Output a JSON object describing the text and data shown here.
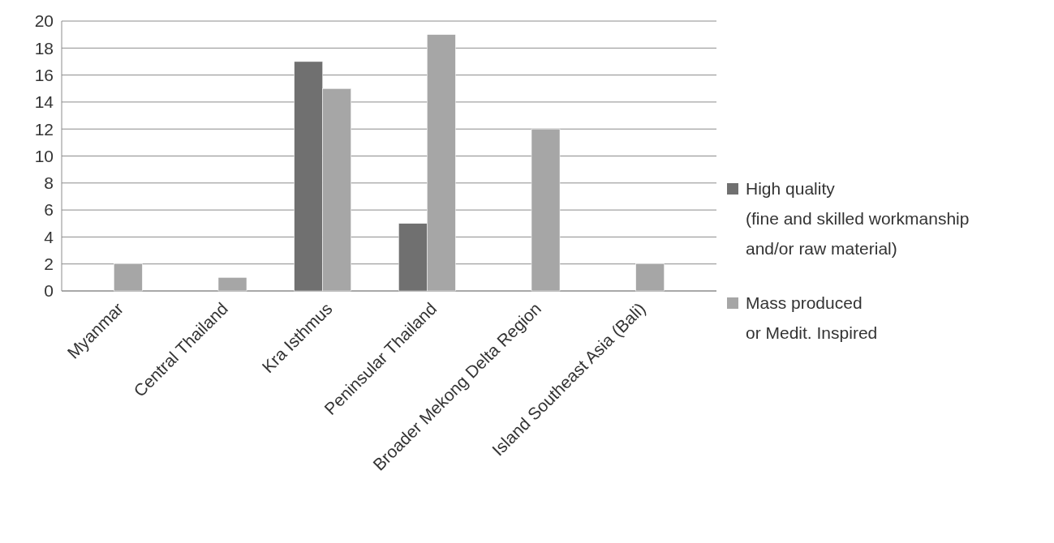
{
  "chart_data": {
    "type": "bar",
    "categories": [
      "Myanmar",
      "Central Thailand",
      "Kra Isthmus",
      "Peninsular Thailand",
      "Broader Mekong Delta Region",
      "Island Southeast Asia (Bali)"
    ],
    "series": [
      {
        "name": "High quality\n(fine and skilled workmanship\nand/or raw material)",
        "color": "#707070",
        "values": [
          0,
          0,
          17,
          5,
          0,
          0
        ]
      },
      {
        "name": "Mass produced\nor Medit. Inspired",
        "color": "#a6a6a6",
        "values": [
          2,
          1,
          15,
          19,
          12,
          2
        ]
      }
    ],
    "ylim": [
      0,
      20
    ],
    "yticks": [
      0,
      2,
      4,
      6,
      8,
      10,
      12,
      14,
      16,
      18,
      20
    ],
    "grid": "y",
    "legend": "right"
  }
}
